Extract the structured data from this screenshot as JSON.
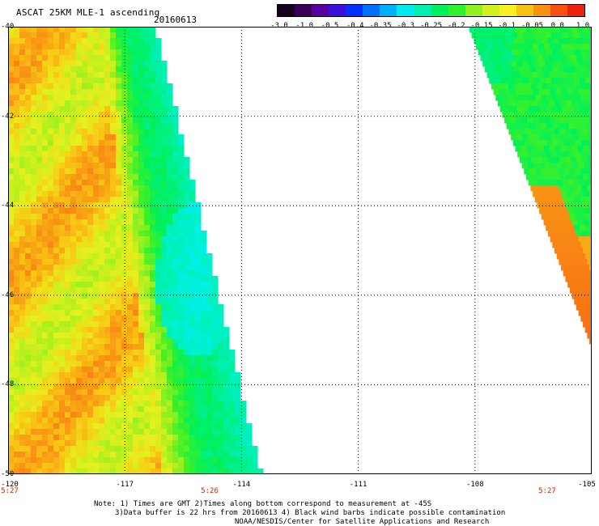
{
  "header": {
    "title": "ASCAT 25KM MLE-1 ascending",
    "date": "20160613"
  },
  "colorbar": {
    "tick_labels": [
      "-3.0",
      "-1.0",
      "-0.5",
      "-0.4",
      "-0.35",
      "-0.3",
      "-0.25",
      "-0.2",
      "-0.15",
      "-0.1",
      "-0.05",
      "0.0",
      "1.0"
    ],
    "colors": [
      "#18001e",
      "#3a0058",
      "#5a00a0",
      "#3a10d8",
      "#0030ff",
      "#0070ff",
      "#00b0ff",
      "#00e8f0",
      "#00f0b0",
      "#00f060",
      "#30f030",
      "#90f020",
      "#d0f020",
      "#f8f020",
      "#f8c010",
      "#f89010",
      "#f85010",
      "#f02010"
    ]
  },
  "map": {
    "lon_ticks": [
      "-120",
      "-117",
      "-114",
      "-111",
      "-108",
      "-105"
    ],
    "lat_ticks": [
      "-40",
      "-42",
      "-44",
      "-46",
      "-48",
      "-50"
    ],
    "swath_times": [
      "5:27",
      "5:26",
      "5:27"
    ]
  },
  "notes": {
    "line1": "Note: 1) Times are GMT 2)Times along bottom correspond to measurement at -45S",
    "line2": "3)Data buffer is 22 hrs from 20160613 4) Black wind barbs indicate possible contamination",
    "line3": "NOAA/NESDIS/Center for Satellite Applications and Research"
  }
}
